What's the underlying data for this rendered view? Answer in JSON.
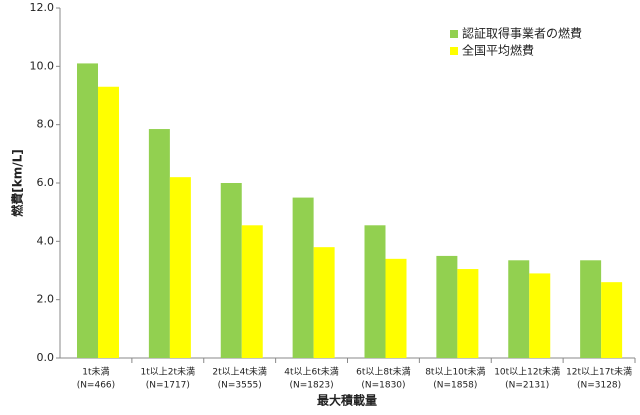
{
  "chart_data": {
    "type": "bar",
    "categories": [
      [
        "1t未満",
        "(N=466)"
      ],
      [
        "1t以上2t未満",
        "(N=1717)"
      ],
      [
        "2t以上4t未満",
        "(N=3555)"
      ],
      [
        "4t以上6t未満",
        "(N=1823)"
      ],
      [
        "6t以上8t未満",
        "(N=1830)"
      ],
      [
        "8t以上10t未満",
        "(N=1858)"
      ],
      [
        "10t以上12t未満",
        "(N=2131)"
      ],
      [
        "12t以上17t未満",
        "(N=3128)"
      ]
    ],
    "series": [
      {
        "name": "認証取得事業者の燃費",
        "color": "#92d050",
        "values": [
          10.1,
          7.85,
          6.0,
          5.5,
          4.55,
          3.5,
          3.35,
          3.35
        ]
      },
      {
        "name": "全国平均燃費",
        "color": "#ffff00",
        "values": [
          9.3,
          6.2,
          4.55,
          3.8,
          3.4,
          3.05,
          2.9,
          2.6
        ]
      }
    ],
    "y_label": "燃費[km/L]",
    "x_label": "最大積載量",
    "ylim": [
      0,
      12
    ],
    "yticks": [
      {
        "value": 0,
        "label": "0.0"
      },
      {
        "value": 2,
        "label": "2.0"
      },
      {
        "value": 4,
        "label": "4.0"
      },
      {
        "value": 6,
        "label": "6.0"
      },
      {
        "value": 8,
        "label": "8.0"
      },
      {
        "value": 10,
        "label": "10.0"
      },
      {
        "value": 12,
        "label": "12.0"
      }
    ],
    "legend": "top-right"
  }
}
